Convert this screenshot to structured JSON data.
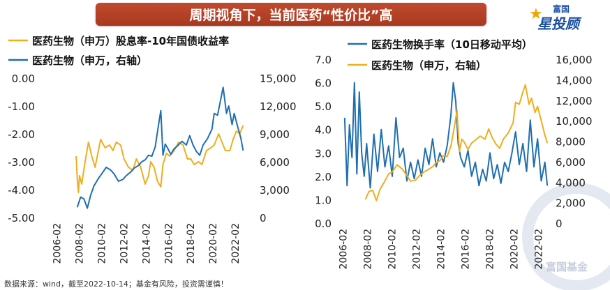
{
  "header": {
    "title": "周期视角下，当前医药“性价比”高"
  },
  "logo": {
    "top_text": "富国",
    "main_text": "星投顾",
    "star_glyph": "★"
  },
  "footer": {
    "source": "数据来源：wind，截至2022-10-14；基金有风险，投资需谨慎！",
    "watermark": "富国基金"
  },
  "colors": {
    "orange": "#f0ad1c",
    "blue": "#1f6fb0",
    "axis_text": "#222222"
  },
  "chart_data": [
    {
      "type": "line",
      "legend": [
        {
          "name": "医药生物（申万）股息率-10年国债收益率",
          "color": "#f0ad1c"
        },
        {
          "name": "医药生物（申万，右轴）",
          "color": "#1f6fb0"
        }
      ],
      "x_ticks": [
        "2006-02",
        "2008-02",
        "2010-02",
        "2012-02",
        "2014-02",
        "2016-02",
        "2018-02",
        "2020-02",
        "2022-02"
      ],
      "x_range": [
        2006.1,
        2022.9
      ],
      "y_left": {
        "range": [
          -5,
          0
        ],
        "ticks": [
          "0.00",
          "-1.00",
          "-2.00",
          "-3.00",
          "-4.00",
          "-5.00"
        ]
      },
      "y_right": {
        "range": [
          0,
          15000
        ],
        "ticks": [
          "15,000",
          "12,000",
          "9,000",
          "6,000",
          "3,000",
          "0"
        ]
      },
      "series": [
        {
          "name": "医药生物（申万）股息率-10年国债收益率",
          "axis": "left",
          "color": "#f0ad1c",
          "x": [
            2007.8,
            2007.9,
            2008.0,
            2008.1,
            2008.3,
            2008.6,
            2008.9,
            2009.2,
            2009.5,
            2009.8,
            2010.0,
            2010.4,
            2010.8,
            2011.1,
            2011.4,
            2011.8,
            2012.1,
            2012.5,
            2012.9,
            2013.2,
            2013.6,
            2014.0,
            2014.3,
            2014.5,
            2014.8,
            2015.1,
            2015.4,
            2015.6,
            2015.9,
            2016.2,
            2016.6,
            2017.0,
            2017.4,
            2017.8,
            2018.1,
            2018.4,
            2018.8,
            2019.1,
            2019.5,
            2019.9,
            2020.2,
            2020.6,
            2020.9,
            2021.2,
            2021.6,
            2021.9,
            2022.2,
            2022.5,
            2022.8
          ],
          "y": [
            -2.8,
            -3.6,
            -4.1,
            -3.5,
            -3.8,
            -3.0,
            -2.3,
            -2.8,
            -3.2,
            -2.6,
            -2.2,
            -2.5,
            -2.4,
            -2.6,
            -2.3,
            -2.4,
            -2.9,
            -3.2,
            -3.3,
            -2.9,
            -3.2,
            -3.8,
            -3.5,
            -3.0,
            -3.2,
            -3.7,
            -3.9,
            -3.1,
            -2.7,
            -2.8,
            -2.6,
            -2.3,
            -2.4,
            -2.9,
            -2.9,
            -3.1,
            -3.0,
            -3.1,
            -2.6,
            -2.5,
            -2.4,
            -2.0,
            -2.3,
            -2.6,
            -2.6,
            -2.2,
            -1.9,
            -2.0,
            -1.7
          ]
        },
        {
          "name": "医药生物（申万，右轴）",
          "axis": "right",
          "color": "#1f6fb0",
          "x": [
            2007.9,
            2008.2,
            2008.5,
            2008.8,
            2009.1,
            2009.4,
            2009.8,
            2010.1,
            2010.5,
            2010.9,
            2011.2,
            2011.6,
            2012.0,
            2012.3,
            2012.7,
            2013.0,
            2013.4,
            2013.7,
            2014.0,
            2014.3,
            2014.6,
            2014.9,
            2015.2,
            2015.4,
            2015.6,
            2015.8,
            2016.0,
            2016.3,
            2016.6,
            2016.9,
            2017.3,
            2017.7,
            2018.0,
            2018.3,
            2018.6,
            2018.9,
            2019.2,
            2019.6,
            2020.0,
            2020.2,
            2020.5,
            2020.8,
            2021.0,
            2021.3,
            2021.5,
            2021.8,
            2022.0,
            2022.3,
            2022.6,
            2022.8
          ],
          "y": [
            1100,
            2200,
            2000,
            1000,
            2400,
            3400,
            4200,
            4700,
            5400,
            5100,
            4700,
            3900,
            4100,
            4500,
            4900,
            5300,
            5600,
            6000,
            6200,
            6700,
            6600,
            7600,
            10000,
            11500,
            6700,
            7900,
            7500,
            6800,
            7400,
            7700,
            8200,
            7800,
            8800,
            7800,
            7100,
            6700,
            7800,
            8500,
            9500,
            11200,
            11000,
            12800,
            14000,
            11200,
            12000,
            10000,
            11200,
            9800,
            8500,
            7200
          ]
        }
      ]
    },
    {
      "type": "line",
      "legend": [
        {
          "name": "医药生物换手率（10日移动平均）",
          "color": "#1f6fb0"
        },
        {
          "name": "医药生物（申万，右轴）",
          "color": "#f0ad1c"
        }
      ],
      "x_ticks": [
        "2006-02",
        "2008-02",
        "2010-02",
        "2012-02",
        "2014-02",
        "2016-02",
        "2018-02",
        "2020-02",
        "2022-02"
      ],
      "x_range": [
        2006.1,
        2022.9
      ],
      "y_left": {
        "range": [
          0,
          7
        ],
        "ticks": [
          "7.0",
          "6.0",
          "5.0",
          "4.0",
          "3.0",
          "2.0",
          "1.0",
          "0.0"
        ]
      },
      "y_right": {
        "range": [
          0,
          16000
        ],
        "ticks": [
          "16,000",
          "14,000",
          "12,000",
          "10,000",
          "8,000",
          "6,000",
          "4,000",
          "2,000",
          "0"
        ]
      },
      "series": [
        {
          "name": "医药生物换手率（10日移动平均）",
          "axis": "left",
          "color": "#1f6fb0",
          "x": [
            2006.2,
            2006.4,
            2006.6,
            2006.8,
            2007.0,
            2007.2,
            2007.4,
            2007.6,
            2007.8,
            2008.0,
            2008.3,
            2008.6,
            2008.9,
            2009.2,
            2009.5,
            2009.8,
            2010.1,
            2010.4,
            2010.7,
            2011.0,
            2011.3,
            2011.6,
            2011.9,
            2012.2,
            2012.5,
            2012.8,
            2013.1,
            2013.4,
            2013.7,
            2014.0,
            2014.3,
            2014.6,
            2014.9,
            2015.1,
            2015.3,
            2015.5,
            2015.7,
            2016.0,
            2016.3,
            2016.6,
            2016.9,
            2017.2,
            2017.5,
            2017.8,
            2018.1,
            2018.4,
            2018.7,
            2019.0,
            2019.3,
            2019.6,
            2019.9,
            2020.2,
            2020.5,
            2020.8,
            2021.1,
            2021.4,
            2021.7,
            2022.0,
            2022.3,
            2022.6,
            2022.8
          ],
          "y": [
            4.5,
            1.6,
            4.2,
            2.8,
            6.0,
            2.1,
            5.6,
            3.0,
            2.0,
            3.4,
            1.5,
            3.8,
            2.2,
            4.0,
            2.4,
            3.3,
            2.0,
            4.5,
            2.8,
            3.2,
            1.8,
            2.6,
            1.9,
            2.7,
            2.0,
            3.2,
            2.5,
            3.6,
            2.4,
            3.0,
            2.6,
            3.3,
            4.6,
            6.0,
            5.2,
            3.4,
            2.8,
            2.4,
            3.1,
            2.0,
            2.6,
            1.6,
            2.3,
            1.8,
            3.0,
            1.9,
            2.5,
            1.7,
            2.6,
            2.2,
            3.0,
            3.9,
            2.5,
            3.4,
            2.2,
            4.4,
            2.4,
            3.6,
            1.8,
            2.6,
            1.6
          ]
        },
        {
          "name": "医药生物（申万，右轴）",
          "axis": "right",
          "color": "#f0ad1c",
          "x": [
            2007.9,
            2008.2,
            2008.5,
            2008.8,
            2009.1,
            2009.4,
            2009.8,
            2010.1,
            2010.5,
            2010.9,
            2011.2,
            2011.6,
            2012.0,
            2012.3,
            2012.7,
            2013.0,
            2013.4,
            2013.7,
            2014.0,
            2014.3,
            2014.6,
            2014.9,
            2015.2,
            2015.4,
            2015.6,
            2015.8,
            2016.0,
            2016.3,
            2016.6,
            2016.9,
            2017.3,
            2017.7,
            2018.0,
            2018.3,
            2018.6,
            2018.9,
            2019.2,
            2019.6,
            2020.0,
            2020.2,
            2020.5,
            2020.8,
            2021.0,
            2021.3,
            2021.5,
            2021.8,
            2022.0,
            2022.3,
            2022.6,
            2022.8
          ],
          "y": [
            2300,
            3100,
            3200,
            2200,
            3300,
            3900,
            4800,
            5000,
            5700,
            5300,
            4800,
            4100,
            4200,
            4600,
            5000,
            5200,
            5500,
            5900,
            6100,
            6600,
            6500,
            7500,
            9500,
            11000,
            7000,
            8200,
            7900,
            7200,
            7800,
            8100,
            8500,
            8200,
            9200,
            8300,
            7700,
            7300,
            8200,
            8800,
            9800,
            11800,
            11600,
            12800,
            13500,
            11600,
            12200,
            10800,
            11400,
            10000,
            8600,
            7800
          ]
        }
      ]
    }
  ]
}
